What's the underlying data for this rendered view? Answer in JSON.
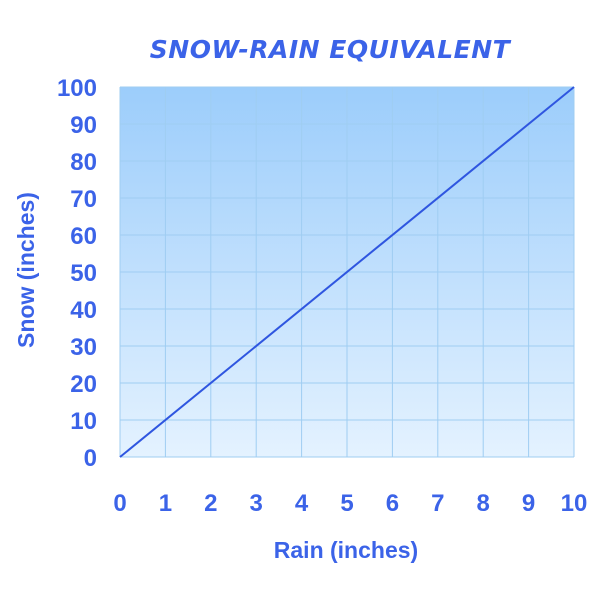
{
  "colors": {
    "text": "#3b63e8",
    "line": "#2f56e0",
    "grid": "#9fcdf2",
    "fill_top": "#9ccdfb",
    "fill_bottom": "#e4f2ff"
  },
  "chart_data": {
    "type": "line",
    "title": "SNOW-RAIN EQUIVALENT",
    "xlabel": "Rain (inches)",
    "ylabel": "Snow (inches)",
    "xlim": [
      0,
      10
    ],
    "ylim": [
      0,
      100
    ],
    "xticks": [
      "0",
      "1",
      "2",
      "3",
      "4",
      "5",
      "6",
      "7",
      "8",
      "9",
      "10"
    ],
    "yticks": [
      "0",
      "10",
      "20",
      "30",
      "40",
      "50",
      "60",
      "70",
      "80",
      "90",
      "100"
    ],
    "grid": true,
    "legend": "none",
    "series": [
      {
        "x": [
          0,
          10
        ],
        "y": [
          0,
          100
        ]
      }
    ]
  }
}
